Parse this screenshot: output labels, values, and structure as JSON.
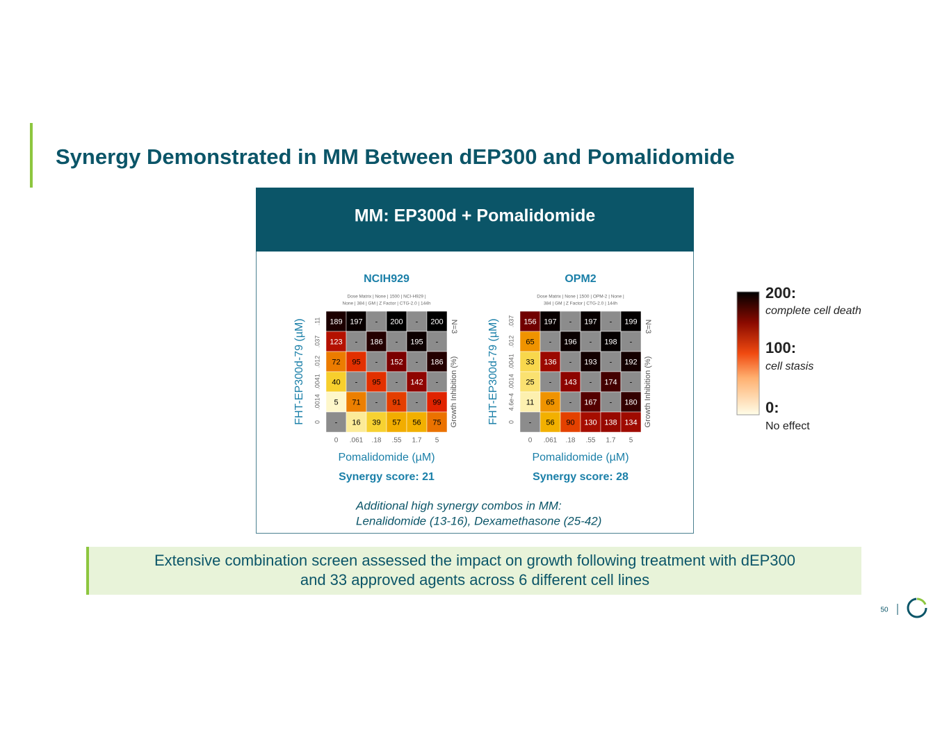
{
  "header": {
    "title": "Synergy Demonstrated in MM Between dEP300 and Pomalidomide"
  },
  "panel": {
    "title": "MM: EP300d + Pomalidomide",
    "heatmaps": [
      {
        "cell_line": "NCIH929",
        "subtitle": [
          "Dose Matrix | None | 1500 | NCI-H929 |",
          "None | 384 | GM | Z Factor | CTG-2.0 | 144h"
        ],
        "y_label": "FHT-EP300d-79 (µM)",
        "y_ticks": [
          ".11",
          ".037",
          ".012",
          ".0041",
          ".0014",
          "0"
        ],
        "x_ticks": [
          "0",
          ".061",
          ".18",
          ".55",
          "1.7",
          "5"
        ],
        "x_label": "Pomalidomide (µM)",
        "right_label": "Growth Inhibition (%)",
        "n_label": "N=3",
        "synergy": "Synergy score: 21",
        "rows": [
          [
            189,
            197,
            "-",
            200,
            "-",
            200
          ],
          [
            123,
            "-",
            186,
            "-",
            195,
            "-"
          ],
          [
            72,
            95,
            "-",
            152,
            "-",
            186
          ],
          [
            40,
            "-",
            95,
            "-",
            142,
            "-"
          ],
          [
            5,
            71,
            "-",
            91,
            "-",
            99
          ],
          [
            "-",
            16,
            39,
            57,
            56,
            75
          ]
        ]
      },
      {
        "cell_line": "OPM2",
        "subtitle": [
          "Dose Matrix | None | 1500 | OPM-2 | None |",
          "384 | GM | Z Factor | CTG-2.0 | 144h"
        ],
        "y_label": "FHT-EP300d-79 (µM)",
        "y_ticks": [
          ".037",
          ".012",
          ".0041",
          ".0014",
          "4.6e-4",
          "0"
        ],
        "x_ticks": [
          "0",
          ".061",
          ".18",
          ".55",
          "1.7",
          "5"
        ],
        "x_label": "Pomalidomide (µM)",
        "right_label": "Growth Inhibition (%)",
        "n_label": "N=3",
        "synergy": "Synergy score: 28",
        "rows": [
          [
            156,
            197,
            "-",
            197,
            "-",
            199
          ],
          [
            65,
            "-",
            196,
            "-",
            198,
            "-"
          ],
          [
            33,
            136,
            "-",
            193,
            "-",
            192
          ],
          [
            25,
            "-",
            143,
            "-",
            174,
            "-"
          ],
          [
            11,
            65,
            "-",
            167,
            "-",
            180
          ],
          [
            "-",
            56,
            90,
            130,
            138,
            134
          ]
        ]
      }
    ],
    "note": [
      "Additional high synergy combos in MM:",
      "Lenalidomide (13-16), Dexamethasone (25-42)"
    ]
  },
  "legend": [
    {
      "value": "200:",
      "label": "complete cell death"
    },
    {
      "value": "100:",
      "label": "cell stasis"
    },
    {
      "value": "0:",
      "label": "No effect"
    }
  ],
  "callout": [
    "Extensive combination screen assessed the impact on growth following treatment with dEP300",
    "and 33 approved agents across 6 different cell lines"
  ],
  "page_number": "50"
}
